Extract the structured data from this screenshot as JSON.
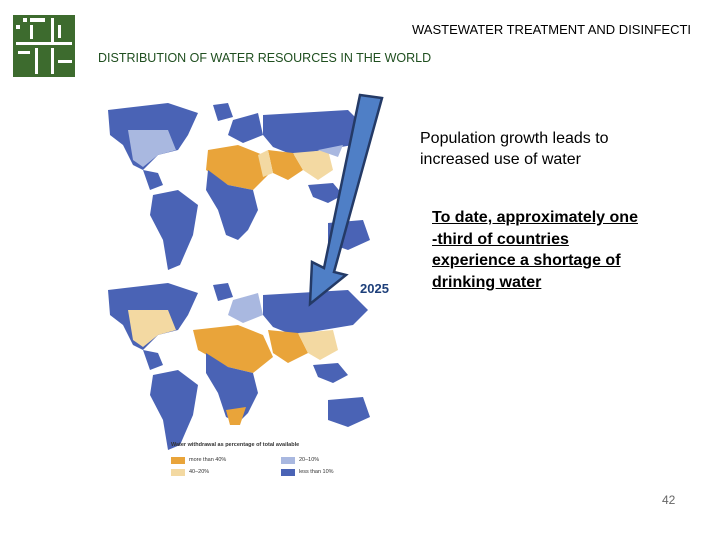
{
  "header": {
    "title": "WASTEWATER TREATMENT AND DISINFECTI"
  },
  "section": {
    "title": "DISTRIBUTION OF WATER RESOURCES IN THE WORLD"
  },
  "map": {
    "year_label": "2025",
    "legend": {
      "title": "Water withdrawal as percentage of total available",
      "items": [
        {
          "label": "more than 40%",
          "color": "#e9a43a"
        },
        {
          "label": "20–10%",
          "color": "#a9b8e0"
        },
        {
          "label": "40–20%",
          "color": "#f3d9a2"
        },
        {
          "label": "less than 10%",
          "color": "#4a63b5"
        }
      ]
    }
  },
  "points": {
    "first": "Population growth leads to increased use of water",
    "second": "To date, approximately one\n-third of countries\nexperience a shortage of\ndrinking water"
  },
  "page_number": "42",
  "colors": {
    "logo_green": "#3d6b2e",
    "arrow_fill": "#4f7fc6",
    "arrow_stroke": "#243a66",
    "ocean": "#ffffff"
  }
}
